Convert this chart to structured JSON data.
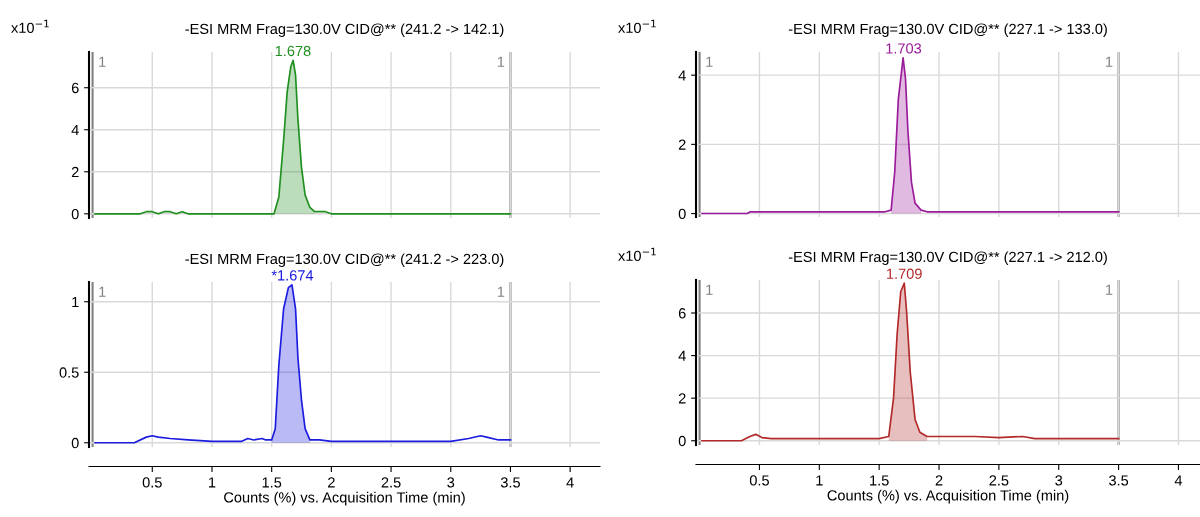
{
  "chart_data": [
    {
      "type": "line",
      "title": "-ESI MRM Frag=130.0V CID@** (241.2 -> 142.1)",
      "ylabel": "x10$^{−1}$",
      "xlim": [
        -0.03,
        4.25
      ],
      "xticks": [
        0.5,
        1,
        1.5,
        2,
        2.5,
        3,
        3.5,
        4
      ],
      "ylim": [
        -0.2,
        7.7
      ],
      "yticks": [
        0,
        2,
        4,
        6
      ],
      "grid": true,
      "tick_labels": "y",
      "series": [
        {
          "color": "#1f8f1f",
          "x": [
            0.02,
            0.4,
            0.45,
            0.5,
            0.55,
            0.6,
            0.65,
            0.7,
            0.75,
            0.8,
            1.0,
            1.3,
            1.52,
            1.56,
            1.6,
            1.63,
            1.66,
            1.68,
            1.7,
            1.72,
            1.75,
            1.78,
            1.82,
            1.86,
            1.9,
            1.95,
            2.0,
            2.5,
            3.0,
            3.5
          ],
          "values": [
            0,
            0,
            0.1,
            0.1,
            0,
            0.1,
            0.1,
            0,
            0.1,
            0,
            0,
            0,
            0,
            0.8,
            3.5,
            5.8,
            7.0,
            7.3,
            6.6,
            4.5,
            2.2,
            0.9,
            0.3,
            0.1,
            0.1,
            0.1,
            0,
            0,
            0,
            0
          ]
        },
        {
          "type": "area",
          "color": "#1f8f1f",
          "x": [
            1.52,
            1.56,
            1.6,
            1.63,
            1.66,
            1.68,
            1.7,
            1.72,
            1.75,
            1.78,
            1.82,
            1.86
          ],
          "values": [
            0,
            0.8,
            3.5,
            5.8,
            7.0,
            7.3,
            6.6,
            4.5,
            2.2,
            0.9,
            0.3,
            0.1
          ]
        }
      ],
      "ref_lines": [
        {
          "axis": "x",
          "value": 0,
          "color": "#808080"
        },
        {
          "axis": "x",
          "value": 3.5,
          "color": "#808080"
        }
      ],
      "annotations": [
        {
          "text": "1.678",
          "x": 1.678,
          "y": 7.3
        },
        {
          "text": "1",
          "x": 0,
          "y": 7.7
        },
        {
          "text": "1",
          "x": 3.5,
          "y": 7.7
        }
      ]
    },
    {
      "type": "line",
      "title": "-ESI MRM Frag=130.0V CID@** (227.1 -> 133.0)",
      "ylabel": "x10$^{−1}$",
      "xlim": [
        -0.03,
        4.18
      ],
      "xticks": [
        0.5,
        1,
        1.5,
        2,
        2.5,
        3,
        3.5,
        4
      ],
      "ylim": [
        -0.1,
        4.67
      ],
      "yticks": [
        0,
        2,
        4
      ],
      "grid": true,
      "tick_labels": "y",
      "series": [
        {
          "color": "#9b1b9b",
          "x": [
            0.02,
            0.4,
            0.42,
            0.5,
            0.6,
            0.7,
            0.9,
            1.0,
            1.4,
            1.55,
            1.6,
            1.63,
            1.66,
            1.7,
            1.72,
            1.74,
            1.77,
            1.8,
            1.85,
            1.9,
            2.0,
            2.5,
            3.0,
            3.5
          ],
          "values": [
            0,
            0,
            0.05,
            0.05,
            0.05,
            0.05,
            0.05,
            0.05,
            0.05,
            0.05,
            0.1,
            1.2,
            3.3,
            4.5,
            3.9,
            2.4,
            0.9,
            0.3,
            0.1,
            0.05,
            0.05,
            0.05,
            0.05,
            0.05
          ]
        },
        {
          "type": "area",
          "color": "#9b1b9b",
          "x": [
            1.6,
            1.63,
            1.66,
            1.7,
            1.72,
            1.74,
            1.77,
            1.8,
            1.85
          ],
          "values": [
            0.1,
            1.2,
            3.3,
            4.5,
            3.9,
            2.4,
            0.9,
            0.3,
            0.1
          ]
        }
      ],
      "ref_lines": [
        {
          "axis": "x",
          "value": 0,
          "color": "#808080"
        },
        {
          "axis": "x",
          "value": 3.5,
          "color": "#808080"
        }
      ],
      "annotations": [
        {
          "text": "1.703",
          "x": 1.703,
          "y": 4.5
        },
        {
          "text": "1",
          "x": 0,
          "y": 4.67
        },
        {
          "text": "1",
          "x": 3.5,
          "y": 4.67
        }
      ]
    },
    {
      "type": "line",
      "title": "-ESI MRM Frag=130.0V CID@** (241.2 -> 223.0)",
      "xlabel": "Counts (%) vs. Acquisition Time (min)",
      "xlim": [
        -0.03,
        4.25
      ],
      "xticks": [
        0.5,
        1,
        1.5,
        2,
        2.5,
        3,
        3.5,
        4
      ],
      "ylim": [
        -0.03,
        1.14
      ],
      "yticks": [
        0,
        0.5,
        1
      ],
      "grid": true,
      "series": [
        {
          "color": "#1c1ce0",
          "x": [
            0.02,
            0.35,
            0.45,
            0.5,
            0.55,
            0.65,
            0.8,
            1.0,
            1.25,
            1.3,
            1.35,
            1.42,
            1.45,
            1.5,
            1.53,
            1.56,
            1.6,
            1.64,
            1.67,
            1.7,
            1.72,
            1.75,
            1.78,
            1.82,
            1.9,
            2.0,
            2.5,
            3.0,
            3.15,
            3.25,
            3.3,
            3.4,
            3.5
          ],
          "values": [
            0,
            0,
            0.04,
            0.05,
            0.04,
            0.03,
            0.02,
            0.01,
            0.01,
            0.03,
            0.02,
            0.03,
            0.02,
            0.02,
            0.1,
            0.55,
            0.95,
            1.1,
            1.12,
            0.95,
            0.6,
            0.3,
            0.1,
            0.02,
            0.02,
            0.01,
            0.01,
            0.01,
            0.03,
            0.05,
            0.04,
            0.02,
            0.02
          ]
        },
        {
          "type": "area",
          "color": "#1c1ce0",
          "x": [
            1.5,
            1.53,
            1.56,
            1.6,
            1.64,
            1.67,
            1.7,
            1.72,
            1.75,
            1.78,
            1.82
          ],
          "values": [
            0.02,
            0.1,
            0.55,
            0.95,
            1.1,
            1.12,
            0.95,
            0.6,
            0.3,
            0.1,
            0.02
          ]
        }
      ],
      "ref_lines": [
        {
          "axis": "x",
          "value": 0,
          "color": "#808080"
        },
        {
          "axis": "x",
          "value": 3.5,
          "color": "#808080"
        }
      ],
      "annotations": [
        {
          "text": "*1.674",
          "x": 1.674,
          "y": 1.12
        },
        {
          "text": "1",
          "x": 0,
          "y": 1.14
        },
        {
          "text": "1",
          "x": 3.5,
          "y": 1.14
        }
      ]
    },
    {
      "type": "line",
      "title": "-ESI MRM Frag=130.0V CID@** (227.1 -> 212.0)",
      "ylabel": "x10$^{−1}$",
      "xlabel": "Counts (%) vs. Acquisition Time (min)",
      "xlim": [
        -0.03,
        4.18
      ],
      "xticks": [
        0.5,
        1,
        1.5,
        2,
        2.5,
        3,
        3.5,
        4
      ],
      "ylim": [
        -0.2,
        7.55
      ],
      "yticks": [
        0,
        2,
        4,
        6
      ],
      "grid": true,
      "series": [
        {
          "color": "#b22a2a",
          "x": [
            0.02,
            0.35,
            0.42,
            0.47,
            0.52,
            0.6,
            0.9,
            1.0,
            1.5,
            1.58,
            1.62,
            1.65,
            1.68,
            1.71,
            1.73,
            1.76,
            1.8,
            1.84,
            1.9,
            2.0,
            2.3,
            2.5,
            2.7,
            2.8,
            3.0,
            3.5
          ],
          "values": [
            0,
            0,
            0.2,
            0.3,
            0.15,
            0.1,
            0.1,
            0.1,
            0.1,
            0.2,
            2.0,
            5.0,
            7.0,
            7.4,
            6.0,
            3.2,
            1.0,
            0.4,
            0.2,
            0.2,
            0.2,
            0.15,
            0.2,
            0.1,
            0.1,
            0.1
          ]
        },
        {
          "type": "area",
          "color": "#b22a2a",
          "x": [
            1.58,
            1.62,
            1.65,
            1.68,
            1.71,
            1.73,
            1.76,
            1.8,
            1.84,
            1.9
          ],
          "values": [
            0.2,
            2.0,
            5.0,
            7.0,
            7.4,
            6.0,
            3.2,
            1.0,
            0.4,
            0.2
          ]
        }
      ],
      "ref_lines": [
        {
          "axis": "x",
          "value": 0,
          "color": "#808080"
        },
        {
          "axis": "x",
          "value": 3.5,
          "color": "#808080"
        }
      ],
      "annotations": [
        {
          "text": "1.709",
          "x": 1.709,
          "y": 7.4
        },
        {
          "text": "1",
          "x": 0,
          "y": 7.55
        },
        {
          "text": "1",
          "x": 3.5,
          "y": 7.55
        }
      ]
    }
  ]
}
